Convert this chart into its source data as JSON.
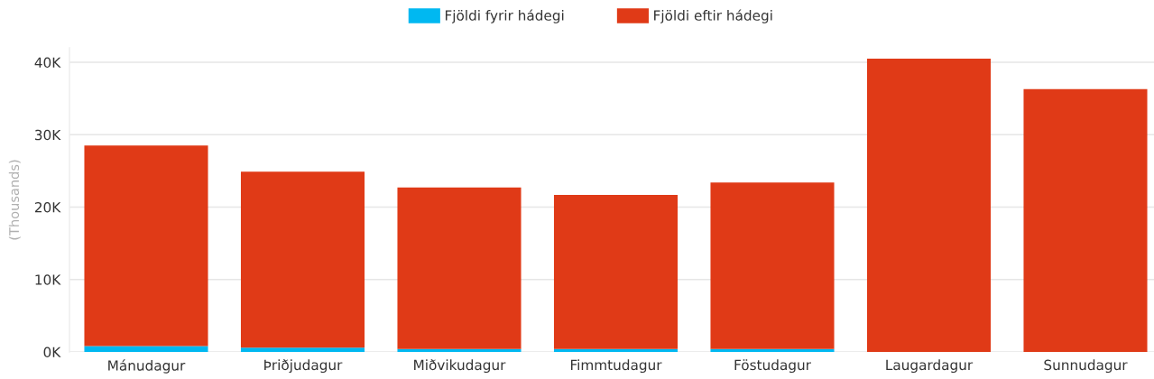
{
  "chart_data": {
    "type": "bar",
    "stacked": true,
    "ylabel": "(Thousands)",
    "categories": [
      "Mánudagur",
      "Þriðjudagur",
      "Miðvikudagur",
      "Fimmtudagur",
      "Föstudagur",
      "Laugardagur",
      "Sunnudagur"
    ],
    "series": [
      {
        "name": "Fjöldi fyrir hádegi",
        "color": "#00b8f1",
        "values": [
          800,
          600,
          400,
          400,
          400,
          0,
          0
        ]
      },
      {
        "name": "Fjöldi eftir hádegi",
        "color": "#e03a17",
        "values": [
          27700,
          24300,
          22300,
          21300,
          23000,
          40500,
          36300
        ]
      }
    ],
    "ylim": [
      0,
      42000
    ],
    "yticks": [
      {
        "value": 0,
        "label": "0K"
      },
      {
        "value": 10000,
        "label": "10K"
      },
      {
        "value": 20000,
        "label": "20K"
      },
      {
        "value": 30000,
        "label": "30K"
      },
      {
        "value": 40000,
        "label": "40K"
      }
    ],
    "grid": "y",
    "legend": "top"
  }
}
